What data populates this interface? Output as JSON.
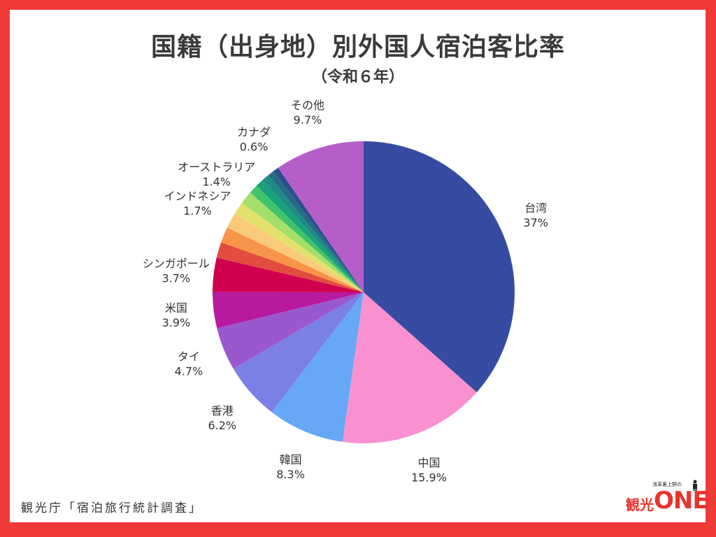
{
  "chart_data": {
    "type": "pie",
    "title": "国籍（出身地）別外国人宿泊客比率",
    "subtitle": "（令和６年）",
    "slices": [
      {
        "label": "台湾",
        "value": 37,
        "value_label": "37%",
        "color": "#374ba3"
      },
      {
        "label": "中国",
        "value": 15.9,
        "value_label": "15.9%",
        "color": "#f991d1"
      },
      {
        "label": "韓国",
        "value": 8.3,
        "value_label": "8.3%",
        "color": "#66a8f5"
      },
      {
        "label": "香港",
        "value": 6.2,
        "value_label": "6.2%",
        "color": "#7b7fe6"
      },
      {
        "label": "タイ",
        "value": 4.7,
        "value_label": "4.7%",
        "color": "#9a58cf"
      },
      {
        "label": "米国",
        "value": 3.9,
        "value_label": "3.9%",
        "color": "#b8199e"
      },
      {
        "label": "シンガポール",
        "value": 3.7,
        "value_label": "3.7%",
        "color": "#d1004f"
      },
      {
        "label": "",
        "value": 1.7,
        "value_label": "",
        "color": "#e34c3f"
      },
      {
        "label": "",
        "value": 1.7,
        "value_label": "",
        "color": "#f7944a"
      },
      {
        "label": "インドネシア",
        "value": 1.7,
        "value_label": "1.7%",
        "color": "#fbc97a"
      },
      {
        "label": "",
        "value": 1.4,
        "value_label": "",
        "color": "#e2e16c"
      },
      {
        "label": "オーストラリア",
        "value": 1.4,
        "value_label": "1.4%",
        "color": "#a3df6a"
      },
      {
        "label": "",
        "value": 1.0,
        "value_label": "",
        "color": "#3fc46c"
      },
      {
        "label": "",
        "value": 0.9,
        "value_label": "",
        "color": "#19a27a"
      },
      {
        "label": "",
        "value": 0.8,
        "value_label": "",
        "color": "#1f8b86"
      },
      {
        "label": "",
        "value": 0.7,
        "value_label": "",
        "color": "#266b84"
      },
      {
        "label": "カナダ",
        "value": 0.6,
        "value_label": "0.6%",
        "color": "#2c4f8c"
      },
      {
        "label": "その他",
        "value": 9.7,
        "value_label": "9.7%",
        "color": "#b55ec9"
      }
    ]
  },
  "source": "観光庁「宿泊旅行統計調査」",
  "logo": {
    "tagline": "浅草裏上野の",
    "kanji": "観光",
    "name": "ONE"
  }
}
